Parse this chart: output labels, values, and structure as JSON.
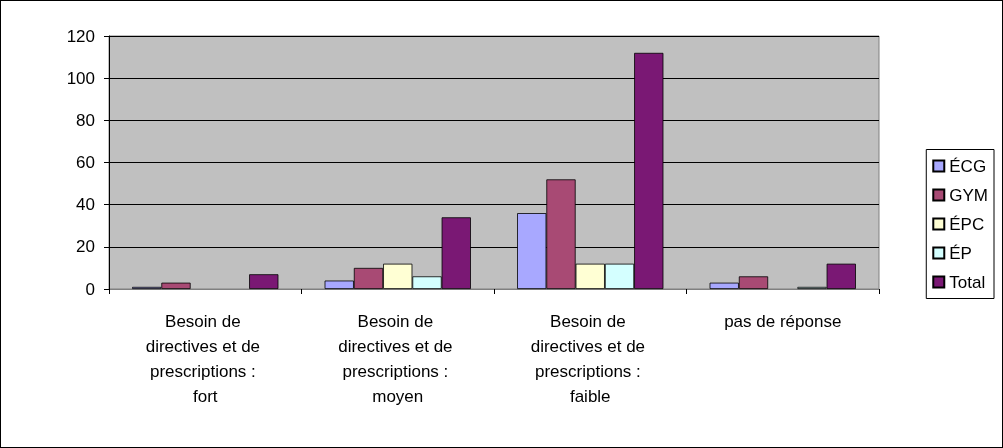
{
  "chart_data": {
    "type": "bar",
    "categories": [
      "Besoin de directives et de prescriptions : fort",
      "Besoin de directives et de prescriptions : moyen",
      "Besoin de directives et de prescriptions : faible",
      "pas de réponse"
    ],
    "series": [
      {
        "name": "ÉCG",
        "color": "#a8a8ff",
        "values": [
          1,
          4,
          36,
          3
        ]
      },
      {
        "name": "GYM",
        "color": "#a84a74",
        "values": [
          3,
          10,
          52,
          6
        ]
      },
      {
        "name": "ÉPC",
        "color": "#ffffd4",
        "values": [
          0,
          12,
          12,
          0
        ]
      },
      {
        "name": "ÉP",
        "color": "#d4ffff",
        "values": [
          0,
          6,
          12,
          1
        ]
      },
      {
        "name": "Total",
        "color": "#7a1874",
        "values": [
          7,
          34,
          112,
          12
        ]
      }
    ],
    "ylim": [
      0,
      120
    ],
    "yticks": [
      0,
      20,
      40,
      60,
      80,
      100,
      120
    ],
    "grid": "y",
    "legend": "right"
  }
}
